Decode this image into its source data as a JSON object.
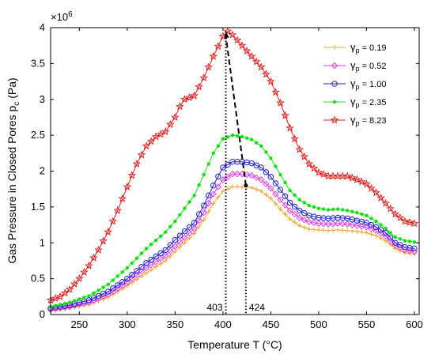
{
  "chart_data": {
    "type": "line",
    "xlabel": "Temperature T (°C)",
    "ylabel": "Gas Pressure in Closed Pores p",
    "ylabel_sub": "c",
    "ylabel_unit": " (Pa)",
    "y_multiplier": "×10",
    "y_multiplier_exp": "6",
    "xlim": [
      220,
      605
    ],
    "ylim": [
      0,
      4
    ],
    "xticks": [
      250,
      300,
      350,
      400,
      450,
      500,
      550,
      600
    ],
    "yticks": [
      0,
      0.5,
      1,
      1.5,
      2,
      2.5,
      3,
      3.5,
      4
    ],
    "legend_position": "top-right",
    "annotations": {
      "peak_left": {
        "label": "403",
        "x": 403
      },
      "peak_right": {
        "label": "424",
        "x": 424
      },
      "arrow": {
        "from": [
          424,
          1.8
        ],
        "to": [
          403,
          3.95
        ]
      }
    },
    "series": [
      {
        "name": "γp = 0.19",
        "legend_symbol": "γ",
        "legend_sub": "p",
        "legend_value": " = 0.19",
        "color": "#f0a830",
        "marker": "plus",
        "points": [
          [
            220,
            0.05
          ],
          [
            240,
            0.09
          ],
          [
            260,
            0.14
          ],
          [
            280,
            0.24
          ],
          [
            300,
            0.4
          ],
          [
            320,
            0.58
          ],
          [
            340,
            0.75
          ],
          [
            350,
            0.88
          ],
          [
            360,
            1.0
          ],
          [
            370,
            1.13
          ],
          [
            380,
            1.32
          ],
          [
            390,
            1.55
          ],
          [
            400,
            1.72
          ],
          [
            410,
            1.78
          ],
          [
            420,
            1.78
          ],
          [
            430,
            1.77
          ],
          [
            440,
            1.72
          ],
          [
            450,
            1.62
          ],
          [
            460,
            1.47
          ],
          [
            470,
            1.33
          ],
          [
            480,
            1.24
          ],
          [
            490,
            1.19
          ],
          [
            500,
            1.18
          ],
          [
            510,
            1.17
          ],
          [
            520,
            1.18
          ],
          [
            530,
            1.17
          ],
          [
            540,
            1.16
          ],
          [
            550,
            1.14
          ],
          [
            560,
            1.1
          ],
          [
            570,
            1.03
          ],
          [
            580,
            0.92
          ],
          [
            590,
            0.86
          ],
          [
            600,
            0.84
          ]
        ]
      },
      {
        "name": "γp = 0.52",
        "legend_symbol": "γ",
        "legend_sub": "p",
        "legend_value": " = 0.52",
        "color": "#e040e0",
        "marker": "diamond",
        "points": [
          [
            220,
            0.07
          ],
          [
            240,
            0.11
          ],
          [
            260,
            0.17
          ],
          [
            280,
            0.28
          ],
          [
            300,
            0.45
          ],
          [
            320,
            0.65
          ],
          [
            340,
            0.82
          ],
          [
            350,
            0.95
          ],
          [
            360,
            1.07
          ],
          [
            370,
            1.2
          ],
          [
            380,
            1.42
          ],
          [
            390,
            1.68
          ],
          [
            400,
            1.88
          ],
          [
            410,
            1.96
          ],
          [
            420,
            1.96
          ],
          [
            430,
            1.94
          ],
          [
            440,
            1.88
          ],
          [
            450,
            1.76
          ],
          [
            460,
            1.6
          ],
          [
            470,
            1.45
          ],
          [
            480,
            1.35
          ],
          [
            490,
            1.29
          ],
          [
            500,
            1.27
          ],
          [
            510,
            1.26
          ],
          [
            520,
            1.27
          ],
          [
            530,
            1.26
          ],
          [
            540,
            1.24
          ],
          [
            550,
            1.22
          ],
          [
            560,
            1.17
          ],
          [
            570,
            1.09
          ],
          [
            580,
            0.97
          ],
          [
            590,
            0.9
          ],
          [
            600,
            0.88
          ]
        ]
      },
      {
        "name": "γp = 1.00",
        "legend_symbol": "γ",
        "legend_sub": "p",
        "legend_value": " = 1.00",
        "color": "#2020d0",
        "marker": "circle",
        "points": [
          [
            220,
            0.09
          ],
          [
            240,
            0.13
          ],
          [
            260,
            0.2
          ],
          [
            280,
            0.32
          ],
          [
            300,
            0.5
          ],
          [
            320,
            0.72
          ],
          [
            340,
            0.9
          ],
          [
            350,
            1.04
          ],
          [
            360,
            1.16
          ],
          [
            370,
            1.28
          ],
          [
            380,
            1.52
          ],
          [
            390,
            1.8
          ],
          [
            400,
            2.05
          ],
          [
            410,
            2.13
          ],
          [
            420,
            2.13
          ],
          [
            430,
            2.11
          ],
          [
            440,
            2.05
          ],
          [
            450,
            1.92
          ],
          [
            460,
            1.74
          ],
          [
            470,
            1.56
          ],
          [
            480,
            1.45
          ],
          [
            490,
            1.38
          ],
          [
            500,
            1.35
          ],
          [
            510,
            1.34
          ],
          [
            520,
            1.35
          ],
          [
            530,
            1.34
          ],
          [
            540,
            1.31
          ],
          [
            550,
            1.28
          ],
          [
            560,
            1.22
          ],
          [
            570,
            1.14
          ],
          [
            580,
            1.0
          ],
          [
            590,
            0.94
          ],
          [
            600,
            0.92
          ]
        ]
      },
      {
        "name": "γp = 2.35",
        "legend_symbol": "γ",
        "legend_sub": "p",
        "legend_value": " = 2.35",
        "color": "#10e010",
        "marker": "dot",
        "points": [
          [
            220,
            0.11
          ],
          [
            240,
            0.17
          ],
          [
            260,
            0.26
          ],
          [
            280,
            0.42
          ],
          [
            300,
            0.65
          ],
          [
            320,
            0.92
          ],
          [
            340,
            1.15
          ],
          [
            350,
            1.3
          ],
          [
            360,
            1.48
          ],
          [
            370,
            1.66
          ],
          [
            380,
            1.95
          ],
          [
            390,
            2.25
          ],
          [
            400,
            2.45
          ],
          [
            410,
            2.5
          ],
          [
            420,
            2.48
          ],
          [
            430,
            2.44
          ],
          [
            440,
            2.35
          ],
          [
            450,
            2.18
          ],
          [
            460,
            1.95
          ],
          [
            470,
            1.73
          ],
          [
            480,
            1.6
          ],
          [
            490,
            1.52
          ],
          [
            500,
            1.48
          ],
          [
            510,
            1.46
          ],
          [
            520,
            1.47
          ],
          [
            530,
            1.45
          ],
          [
            540,
            1.42
          ],
          [
            550,
            1.38
          ],
          [
            560,
            1.3
          ],
          [
            570,
            1.2
          ],
          [
            580,
            1.08
          ],
          [
            590,
            1.03
          ],
          [
            600,
            1.01
          ]
        ]
      },
      {
        "name": "γp = 8.23",
        "legend_symbol": "γ",
        "legend_sub": "p",
        "legend_value": " = 8.23",
        "color": "#e02020",
        "marker": "star",
        "points": [
          [
            220,
            0.2
          ],
          [
            230,
            0.25
          ],
          [
            240,
            0.35
          ],
          [
            250,
            0.5
          ],
          [
            260,
            0.68
          ],
          [
            270,
            0.9
          ],
          [
            280,
            1.15
          ],
          [
            290,
            1.45
          ],
          [
            300,
            1.78
          ],
          [
            310,
            2.1
          ],
          [
            320,
            2.35
          ],
          [
            330,
            2.48
          ],
          [
            340,
            2.55
          ],
          [
            350,
            2.75
          ],
          [
            355,
            2.9
          ],
          [
            360,
            3.0
          ],
          [
            370,
            3.05
          ],
          [
            380,
            3.3
          ],
          [
            390,
            3.6
          ],
          [
            400,
            3.88
          ],
          [
            405,
            3.95
          ],
          [
            410,
            3.9
          ],
          [
            420,
            3.75
          ],
          [
            430,
            3.6
          ],
          [
            440,
            3.45
          ],
          [
            450,
            3.25
          ],
          [
            460,
            2.95
          ],
          [
            470,
            2.6
          ],
          [
            480,
            2.3
          ],
          [
            490,
            2.1
          ],
          [
            500,
            1.98
          ],
          [
            510,
            1.93
          ],
          [
            520,
            1.93
          ],
          [
            530,
            1.93
          ],
          [
            540,
            1.88
          ],
          [
            550,
            1.82
          ],
          [
            560,
            1.7
          ],
          [
            570,
            1.55
          ],
          [
            580,
            1.4
          ],
          [
            590,
            1.3
          ],
          [
            600,
            1.27
          ]
        ]
      }
    ]
  }
}
